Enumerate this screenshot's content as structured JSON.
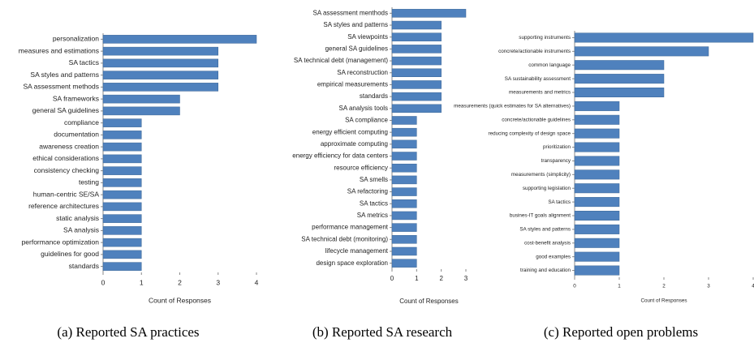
{
  "chart_data": [
    {
      "type": "bar",
      "orientation": "horizontal",
      "caption": "(a) Reported SA practices",
      "xlabel": "Count of Responses",
      "color": "#4f81bd",
      "categories": [
        "personalization",
        "measures and estimations",
        "SA tactics",
        "SA styles and patterns",
        "SA assessment methods",
        "SA frameworks",
        "general SA guidelines",
        "compliance",
        "documentation",
        "awareness creation",
        "ethical considerations",
        "consistency checking",
        "testing",
        "human-centric SE/SA",
        "reference architectures",
        "static analysis",
        "SA analysis",
        "performance optimization",
        "guidelines for good",
        "standards"
      ],
      "values": [
        4,
        3,
        3,
        3,
        3,
        2,
        2,
        1,
        1,
        1,
        1,
        1,
        1,
        1,
        1,
        1,
        1,
        1,
        1,
        1
      ],
      "xlim": [
        0,
        4
      ],
      "xticks": [
        0,
        1,
        2,
        3,
        4
      ]
    },
    {
      "type": "bar",
      "orientation": "horizontal",
      "caption": "(b) Reported SA research",
      "xlabel": "Count of Responses",
      "color": "#4f81bd",
      "categories": [
        "SA assessment menthods",
        "SA styles and patterns",
        "SA viewpoints",
        "general SA guidelines",
        "SA technical debt (management)",
        "SA reconstruction",
        "empirical measurements",
        "standards",
        "SA analysis tools",
        "SA compliance",
        "energy efficient computing",
        "approximate computing",
        "energy efficiency for data centers",
        "resource efficiency",
        "SA smells",
        "SA refactoring",
        "SA tactics",
        "SA metrics",
        "performance management",
        "SA technical debt (monitoring)",
        "lifecycle management",
        "design space exploration"
      ],
      "values": [
        3,
        2,
        2,
        2,
        2,
        2,
        2,
        2,
        2,
        1,
        1,
        1,
        1,
        1,
        1,
        1,
        1,
        1,
        1,
        1,
        1,
        1
      ],
      "xlim": [
        0,
        3
      ],
      "xticks": [
        0,
        1,
        2,
        3
      ]
    },
    {
      "type": "bar",
      "orientation": "horizontal",
      "caption": "(c) Reported open problems",
      "xlabel": "Count of Responses",
      "color": "#4f81bd",
      "categories": [
        "supporting instruments",
        "concrete/actionable instruments",
        "common language",
        "SA sustainability assessment",
        "measurements and metrics",
        "measurements (quick estimates for SA alternatives)",
        "concrete/actionable guidelines",
        "reducing complexity of design space",
        "prioritization",
        "transparency",
        "measurements (simplicity)",
        "supporting legislation",
        "SA tactics",
        "busines-IT goals alignment",
        "SA styles and patterns",
        "cost-benefit analysis",
        "good examples",
        "training and education"
      ],
      "values": [
        4,
        3,
        2,
        2,
        2,
        1,
        1,
        1,
        1,
        1,
        1,
        1,
        1,
        1,
        1,
        1,
        1,
        1
      ],
      "xlim": [
        0,
        4
      ],
      "xticks": [
        0,
        1,
        2,
        3,
        4
      ]
    }
  ]
}
